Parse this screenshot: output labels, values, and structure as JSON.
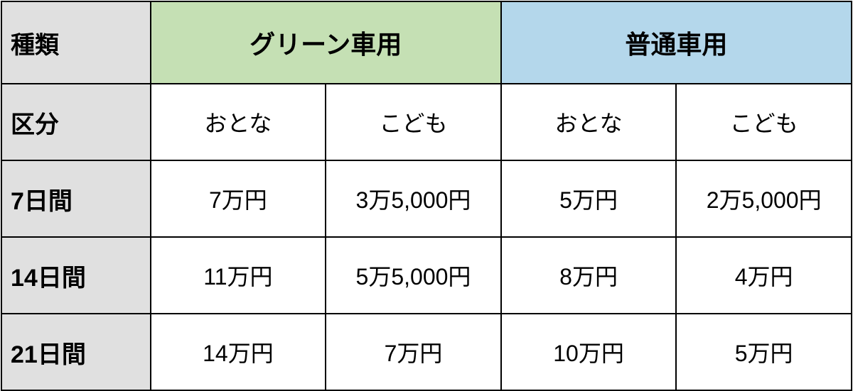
{
  "table": {
    "type": "table",
    "header_row": {
      "type_label": "種類",
      "green_header": "グリーン車用",
      "blue_header": "普通車用"
    },
    "category_row": {
      "label": "区分",
      "green_adult": "おとな",
      "green_child": "こども",
      "normal_adult": "おとな",
      "normal_child": "こども"
    },
    "data_rows": [
      {
        "label": "7日間",
        "green_adult": "7万円",
        "green_child": "3万5,000円",
        "normal_adult": "5万円",
        "normal_child": "2万5,000円"
      },
      {
        "label": "14日間",
        "green_adult": "11万円",
        "green_child": "5万5,000円",
        "normal_adult": "8万円",
        "normal_child": "4万円"
      },
      {
        "label": "21日間",
        "green_adult": "14万円",
        "green_child": "7万円",
        "normal_adult": "10万円",
        "normal_child": "5万円"
      }
    ],
    "colors": {
      "header_bg": "#e0e0e0",
      "green_bg": "#c5e0b4",
      "blue_bg": "#b4d7eb",
      "border": "#000000",
      "cell_bg": "#ffffff"
    },
    "font_sizes": {
      "header": 36,
      "row_label": 34,
      "data": 32
    },
    "column_widths": {
      "type": 210,
      "data": 247
    }
  }
}
